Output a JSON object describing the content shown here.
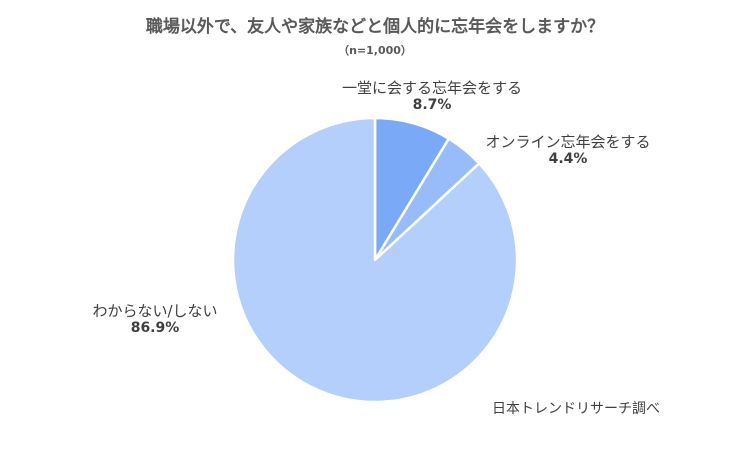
{
  "chart_data": {
    "type": "pie",
    "title": "職場以外で、友人や家族などと個人的に忘年会をしますか？",
    "subtitle": "（n=1,000）",
    "slices": [
      {
        "label": "一堂に会する忘年会をする",
        "value": 8.7,
        "value_label": "8.7%",
        "color": "#7aaaf7"
      },
      {
        "label": "オンライン忘年会をする",
        "value": 4.4,
        "value_label": "4.4%",
        "color": "#97bcf9"
      },
      {
        "label": "わからない/しない",
        "value": 86.9,
        "value_label": "86.9%",
        "color": "#b4cffb"
      }
    ],
    "start_angle_deg": 0,
    "direction": "clockwise"
  },
  "source": "日本トレンドリサーチ調べ"
}
